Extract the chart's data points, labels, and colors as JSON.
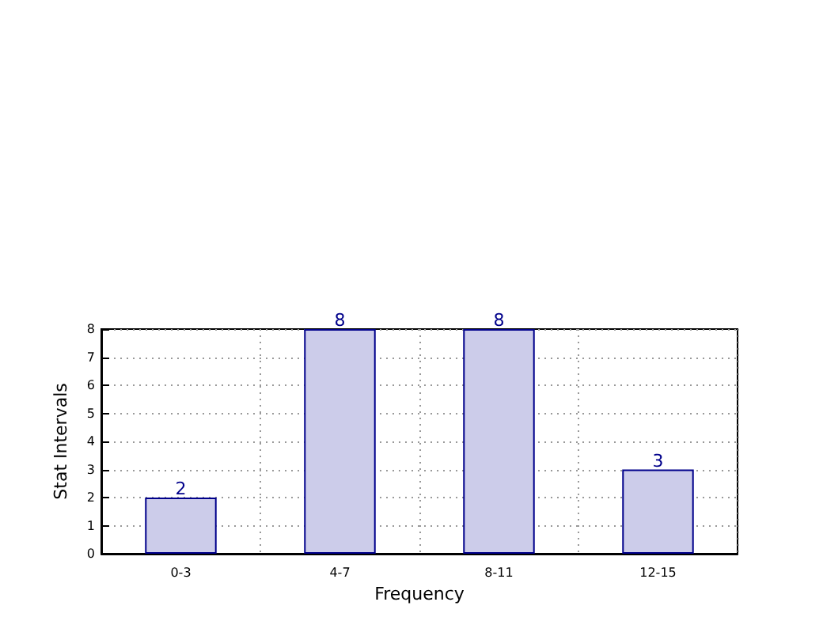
{
  "chart_data": {
    "type": "bar",
    "xlabel": "Frequency",
    "ylabel": "Stat Intervals",
    "categories": [
      "0-3",
      "4-7",
      "8-11",
      "12-15"
    ],
    "values": [
      2,
      8,
      8,
      3
    ],
    "color": "#ccccea",
    "ylim": [
      0,
      8
    ],
    "yticks": [
      0,
      1,
      2,
      3,
      4,
      5,
      6,
      7,
      8
    ],
    "grid": true,
    "data_labels": true
  }
}
